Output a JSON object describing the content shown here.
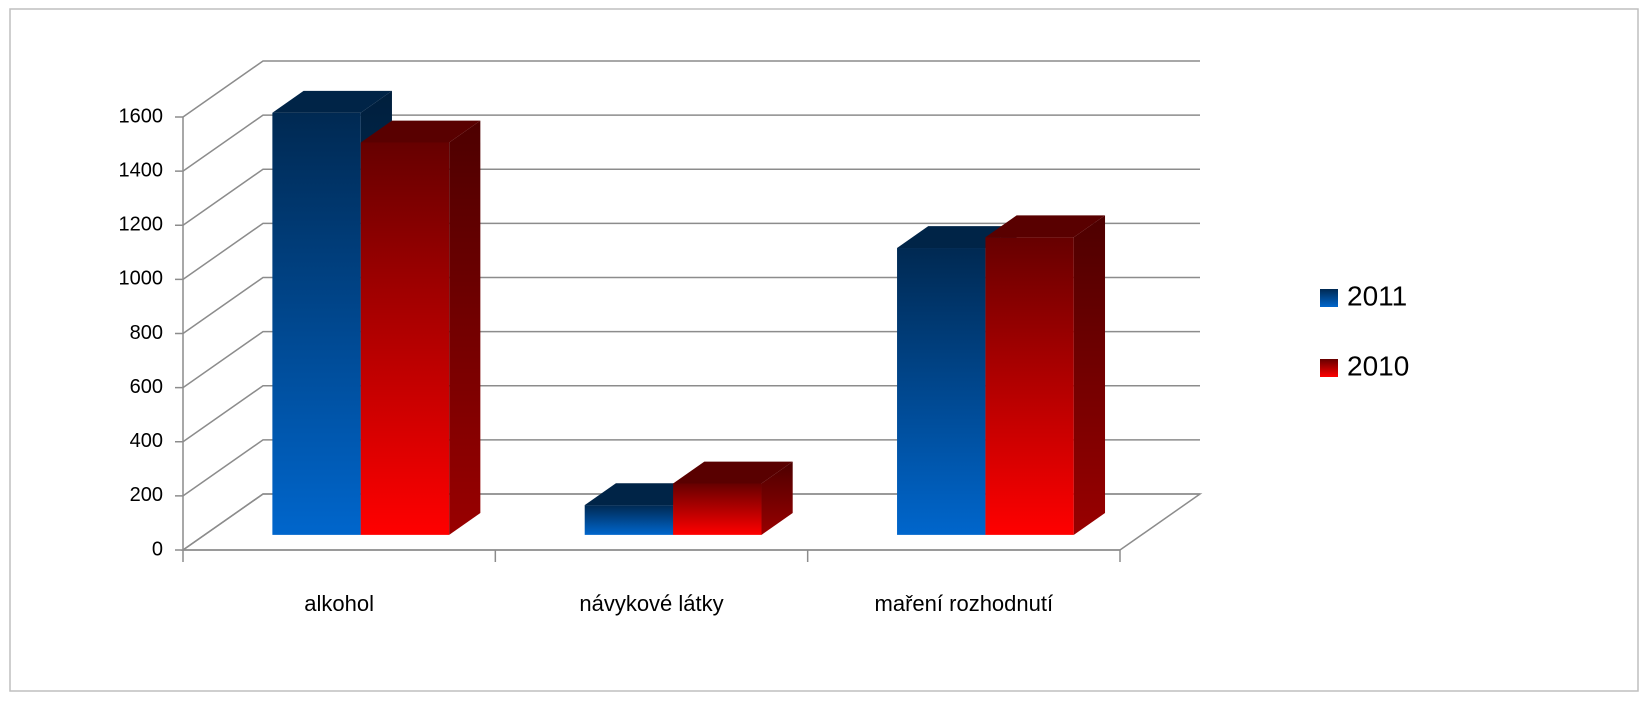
{
  "chart_data": {
    "type": "bar3d",
    "categories": [
      "alkohol",
      "návykové látky",
      "maření  rozhodnutí"
    ],
    "series": [
      {
        "name": "2011",
        "color": "#0066cc",
        "values": [
          1560,
          110,
          1060
        ]
      },
      {
        "name": "2010",
        "color": "#ff0000",
        "values": [
          1450,
          190,
          1100
        ]
      }
    ],
    "ylim": [
      0,
      1600
    ],
    "yticks": [
      0,
      200,
      400,
      600,
      800,
      1000,
      1200,
      1400,
      1600
    ],
    "grid": true,
    "legend": "right"
  }
}
